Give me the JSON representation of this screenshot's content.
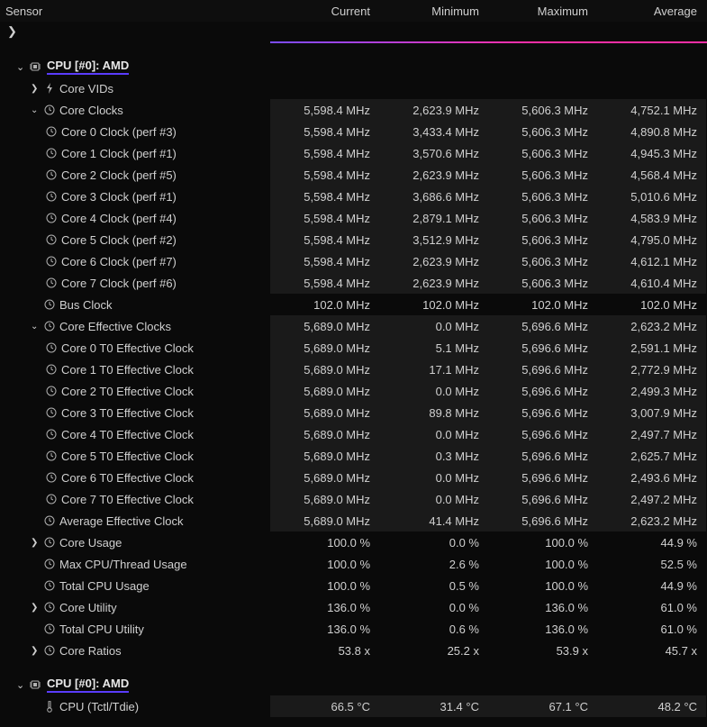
{
  "colors": {
    "bg": "#0a0a0a",
    "text": "#d0d0d0",
    "accent_underline": "#5a3cff",
    "gradient_start": "#7a4cff",
    "gradient_end": "#ff2ea6",
    "alt_row_bg": "#1a1a1a"
  },
  "header": {
    "sensor": "Sensor",
    "current": "Current",
    "minimum": "Minimum",
    "maximum": "Maximum",
    "average": "Average"
  },
  "chevron_right": "❯",
  "chevron_down": "⌄",
  "sections": [
    {
      "title": "CPU [#0]: AMD",
      "rows": [
        {
          "indent": 1,
          "chev": "right",
          "icon": "bolt",
          "label": "Core VIDs",
          "alt": false,
          "vals": [
            "",
            "",
            "",
            ""
          ]
        },
        {
          "indent": 1,
          "chev": "down",
          "icon": "clock",
          "label": "Core Clocks",
          "alt": true,
          "vals": [
            "5,598.4 MHz",
            "2,623.9 MHz",
            "5,606.3 MHz",
            "4,752.1 MHz"
          ]
        },
        {
          "indent": 2,
          "chev": "",
          "icon": "clock",
          "label": "Core 0 Clock (perf #3)",
          "alt": true,
          "vals": [
            "5,598.4 MHz",
            "3,433.4 MHz",
            "5,606.3 MHz",
            "4,890.8 MHz"
          ]
        },
        {
          "indent": 2,
          "chev": "",
          "icon": "clock",
          "label": "Core 1 Clock (perf #1)",
          "alt": true,
          "vals": [
            "5,598.4 MHz",
            "3,570.6 MHz",
            "5,606.3 MHz",
            "4,945.3 MHz"
          ]
        },
        {
          "indent": 2,
          "chev": "",
          "icon": "clock",
          "label": "Core 2 Clock (perf #5)",
          "alt": true,
          "vals": [
            "5,598.4 MHz",
            "2,623.9 MHz",
            "5,606.3 MHz",
            "4,568.4 MHz"
          ]
        },
        {
          "indent": 2,
          "chev": "",
          "icon": "clock",
          "label": "Core 3 Clock (perf #1)",
          "alt": true,
          "vals": [
            "5,598.4 MHz",
            "3,686.6 MHz",
            "5,606.3 MHz",
            "5,010.6 MHz"
          ]
        },
        {
          "indent": 2,
          "chev": "",
          "icon": "clock",
          "label": "Core 4 Clock (perf #4)",
          "alt": true,
          "vals": [
            "5,598.4 MHz",
            "2,879.1 MHz",
            "5,606.3 MHz",
            "4,583.9 MHz"
          ]
        },
        {
          "indent": 2,
          "chev": "",
          "icon": "clock",
          "label": "Core 5 Clock (perf #2)",
          "alt": true,
          "vals": [
            "5,598.4 MHz",
            "3,512.9 MHz",
            "5,606.3 MHz",
            "4,795.0 MHz"
          ]
        },
        {
          "indent": 2,
          "chev": "",
          "icon": "clock",
          "label": "Core 6 Clock (perf #7)",
          "alt": true,
          "vals": [
            "5,598.4 MHz",
            "2,623.9 MHz",
            "5,606.3 MHz",
            "4,612.1 MHz"
          ]
        },
        {
          "indent": 2,
          "chev": "",
          "icon": "clock",
          "label": "Core 7 Clock (perf #6)",
          "alt": true,
          "vals": [
            "5,598.4 MHz",
            "2,623.9 MHz",
            "5,606.3 MHz",
            "4,610.4 MHz"
          ]
        },
        {
          "indent": 1,
          "chev": "",
          "icon": "clock",
          "label": "Bus Clock",
          "alt": false,
          "vals": [
            "102.0 MHz",
            "102.0 MHz",
            "102.0 MHz",
            "102.0 MHz"
          ]
        },
        {
          "indent": 1,
          "chev": "down",
          "icon": "clock",
          "label": "Core Effective Clocks",
          "alt": true,
          "vals": [
            "5,689.0 MHz",
            "0.0 MHz",
            "5,696.6 MHz",
            "2,623.2 MHz"
          ]
        },
        {
          "indent": 2,
          "chev": "",
          "icon": "clock",
          "label": "Core 0 T0 Effective Clock",
          "alt": true,
          "vals": [
            "5,689.0 MHz",
            "5.1 MHz",
            "5,696.6 MHz",
            "2,591.1 MHz"
          ]
        },
        {
          "indent": 2,
          "chev": "",
          "icon": "clock",
          "label": "Core 1 T0 Effective Clock",
          "alt": true,
          "vals": [
            "5,689.0 MHz",
            "17.1 MHz",
            "5,696.6 MHz",
            "2,772.9 MHz"
          ]
        },
        {
          "indent": 2,
          "chev": "",
          "icon": "clock",
          "label": "Core 2 T0 Effective Clock",
          "alt": true,
          "vals": [
            "5,689.0 MHz",
            "0.0 MHz",
            "5,696.6 MHz",
            "2,499.3 MHz"
          ]
        },
        {
          "indent": 2,
          "chev": "",
          "icon": "clock",
          "label": "Core 3 T0 Effective Clock",
          "alt": true,
          "vals": [
            "5,689.0 MHz",
            "89.8 MHz",
            "5,696.6 MHz",
            "3,007.9 MHz"
          ]
        },
        {
          "indent": 2,
          "chev": "",
          "icon": "clock",
          "label": "Core 4 T0 Effective Clock",
          "alt": true,
          "vals": [
            "5,689.0 MHz",
            "0.0 MHz",
            "5,696.6 MHz",
            "2,497.7 MHz"
          ]
        },
        {
          "indent": 2,
          "chev": "",
          "icon": "clock",
          "label": "Core 5 T0 Effective Clock",
          "alt": true,
          "vals": [
            "5,689.0 MHz",
            "0.3 MHz",
            "5,696.6 MHz",
            "2,625.7 MHz"
          ]
        },
        {
          "indent": 2,
          "chev": "",
          "icon": "clock",
          "label": "Core 6 T0 Effective Clock",
          "alt": true,
          "vals": [
            "5,689.0 MHz",
            "0.0 MHz",
            "5,696.6 MHz",
            "2,493.6 MHz"
          ]
        },
        {
          "indent": 2,
          "chev": "",
          "icon": "clock",
          "label": "Core 7 T0 Effective Clock",
          "alt": true,
          "vals": [
            "5,689.0 MHz",
            "0.0 MHz",
            "5,696.6 MHz",
            "2,497.2 MHz"
          ]
        },
        {
          "indent": 1,
          "chev": "",
          "icon": "clock",
          "label": "Average Effective Clock",
          "alt": true,
          "vals": [
            "5,689.0 MHz",
            "41.4 MHz",
            "5,696.6 MHz",
            "2,623.2 MHz"
          ]
        },
        {
          "indent": 1,
          "chev": "right",
          "icon": "clock",
          "label": "Core Usage",
          "alt": false,
          "vals": [
            "100.0 %",
            "0.0 %",
            "100.0 %",
            "44.9 %"
          ]
        },
        {
          "indent": 1,
          "chev": "",
          "icon": "clock",
          "label": "Max CPU/Thread Usage",
          "alt": false,
          "vals": [
            "100.0 %",
            "2.6 %",
            "100.0 %",
            "52.5 %"
          ]
        },
        {
          "indent": 1,
          "chev": "",
          "icon": "clock",
          "label": "Total CPU Usage",
          "alt": false,
          "vals": [
            "100.0 %",
            "0.5 %",
            "100.0 %",
            "44.9 %"
          ]
        },
        {
          "indent": 1,
          "chev": "right",
          "icon": "clock",
          "label": "Core Utility",
          "alt": false,
          "vals": [
            "136.0 %",
            "0.0 %",
            "136.0 %",
            "61.0 %"
          ]
        },
        {
          "indent": 1,
          "chev": "",
          "icon": "clock",
          "label": "Total CPU Utility",
          "alt": false,
          "vals": [
            "136.0 %",
            "0.6 %",
            "136.0 %",
            "61.0 %"
          ]
        },
        {
          "indent": 1,
          "chev": "right",
          "icon": "clock",
          "label": "Core Ratios",
          "alt": false,
          "vals": [
            "53.8 x",
            "25.2 x",
            "53.9 x",
            "45.7 x"
          ]
        }
      ]
    },
    {
      "title": "CPU [#0]: AMD",
      "rows": [
        {
          "indent": 1,
          "chev": "",
          "icon": "therm",
          "label": "CPU (Tctl/Tdie)",
          "alt": true,
          "vals": [
            "66.5 °C",
            "31.4 °C",
            "67.1 °C",
            "48.2 °C"
          ]
        }
      ]
    }
  ]
}
